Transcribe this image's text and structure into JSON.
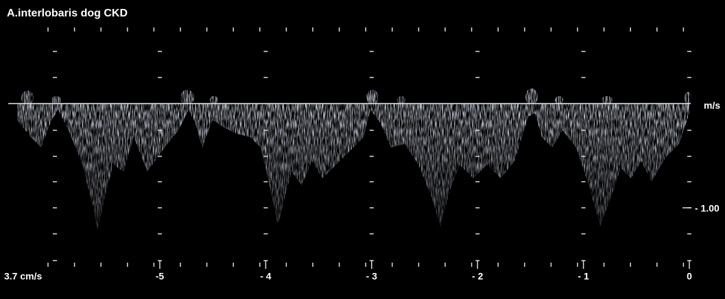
{
  "header": {
    "title": "A.interlobaris dog CKD"
  },
  "scale": {
    "unit": "m/s",
    "marker": "- 1.00",
    "baseline_label": "3.7 cm/s"
  },
  "time_axis": {
    "labels": [
      "-5",
      "- 4",
      "- 3",
      "- 2",
      "- 1",
      "0"
    ]
  }
}
